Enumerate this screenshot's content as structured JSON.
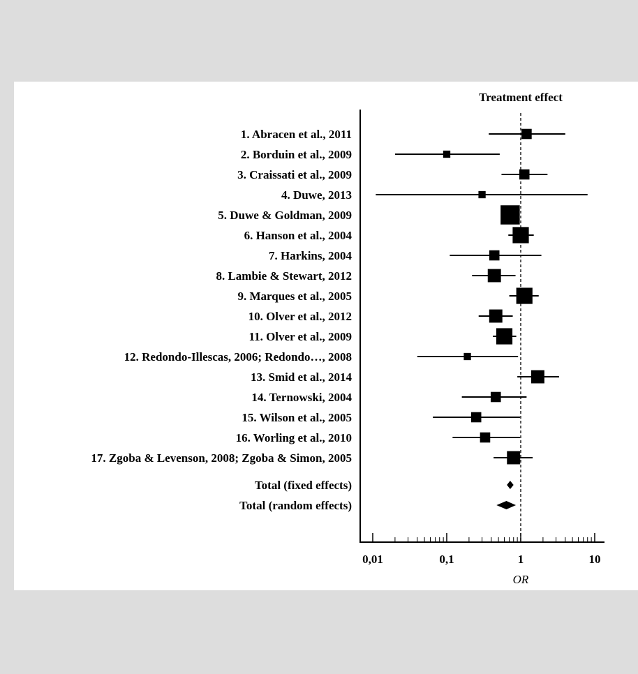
{
  "chart_data": {
    "type": "forest",
    "title": "Treatment effect",
    "xlabel": "OR",
    "xscale": "log",
    "xlim": [
      0.007,
      14
    ],
    "reference_line": 1,
    "x_ticks": [
      {
        "value": 0.01,
        "label": "0,01"
      },
      {
        "value": 0.1,
        "label": "0,1"
      },
      {
        "value": 1,
        "label": "1"
      },
      {
        "value": 10,
        "label": "10"
      }
    ],
    "studies": [
      {
        "label": "1. Abracen et al., 2011",
        "or": 1.2,
        "ci": [
          0.37,
          4.0
        ],
        "weight": 3
      },
      {
        "label": "2. Borduin et al., 2009",
        "or": 0.1,
        "ci": [
          0.02,
          0.52
        ],
        "weight": 2
      },
      {
        "label": "3. Craissati et al., 2009",
        "or": 1.12,
        "ci": [
          0.55,
          2.3
        ],
        "weight": 3
      },
      {
        "label": "4. Duwe, 2013",
        "or": 0.3,
        "ci": [
          0.011,
          8.0
        ],
        "weight": 2
      },
      {
        "label": "5. Duwe & Goldman, 2009",
        "or": 0.72,
        "ci": [
          0.62,
          0.84
        ],
        "weight": 6
      },
      {
        "label": "6. Hanson et al., 2004",
        "or": 1.0,
        "ci": [
          0.68,
          1.5
        ],
        "weight": 5
      },
      {
        "label": "7. Harkins, 2004",
        "or": 0.44,
        "ci": [
          0.11,
          1.9
        ],
        "weight": 3
      },
      {
        "label": "8. Lambie & Stewart, 2012",
        "or": 0.44,
        "ci": [
          0.22,
          0.85
        ],
        "weight": 4
      },
      {
        "label": "9. Marques et al., 2005",
        "or": 1.12,
        "ci": [
          0.7,
          1.75
        ],
        "weight": 5
      },
      {
        "label": "10. Olver et al., 2012",
        "or": 0.46,
        "ci": [
          0.27,
          0.78
        ],
        "weight": 4
      },
      {
        "label": "11. Olver et al., 2009",
        "or": 0.6,
        "ci": [
          0.42,
          0.87
        ],
        "weight": 5
      },
      {
        "label": "12. Redondo-Illescas, 2006; Redondo…, 2008",
        "or": 0.19,
        "ci": [
          0.04,
          0.92
        ],
        "weight": 2
      },
      {
        "label": "13. Smid et al., 2014",
        "or": 1.7,
        "ci": [
          0.9,
          3.3
        ],
        "weight": 4
      },
      {
        "label": "14. Ternowski, 2004",
        "or": 0.46,
        "ci": [
          0.16,
          1.2
        ],
        "weight": 3
      },
      {
        "label": "15. Wilson et al., 2005",
        "or": 0.25,
        "ci": [
          0.065,
          0.98
        ],
        "weight": 3
      },
      {
        "label": "16. Worling et al., 2010",
        "or": 0.33,
        "ci": [
          0.12,
          0.98
        ],
        "weight": 3
      },
      {
        "label": "17. Zgoba & Levenson, 2008; Zgoba & Simon, 2005",
        "or": 0.8,
        "ci": [
          0.43,
          1.45
        ],
        "weight": 4
      }
    ],
    "totals": [
      {
        "label": "Total (fixed effects)",
        "or": 0.72,
        "ci": [
          0.65,
          0.8
        ]
      },
      {
        "label": "Total (random effects)",
        "or": 0.64,
        "ci": [
          0.47,
          0.86
        ]
      }
    ]
  }
}
